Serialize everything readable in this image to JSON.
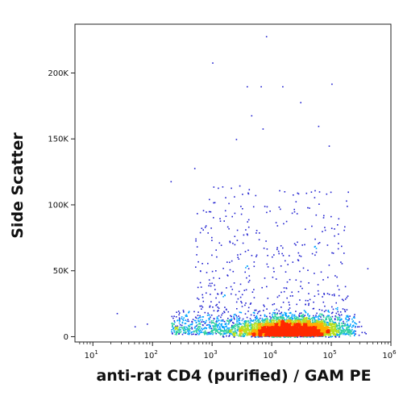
{
  "chart_data": {
    "type": "scatter",
    "plot_style": "flow cytometry pseudocolor density dot plot",
    "xlabel": "anti-rat CD4 (purified) / GAM PE",
    "ylabel": "Side Scatter",
    "x_scale": "log",
    "xlim": [
      5,
      1000000
    ],
    "x_ticks": [
      {
        "value": 10,
        "base": "10",
        "exp": "1"
      },
      {
        "value": 100,
        "base": "10",
        "exp": "2"
      },
      {
        "value": 1000,
        "base": "10",
        "exp": "3"
      },
      {
        "value": 10000,
        "base": "10",
        "exp": "4"
      },
      {
        "value": 100000,
        "base": "10",
        "exp": "5"
      },
      {
        "value": 1000000,
        "base": "10",
        "exp": "6"
      }
    ],
    "y_scale": "linear",
    "ylim": [
      -4000,
      237000
    ],
    "y_ticks": [
      {
        "value": 0,
        "label": "0"
      },
      {
        "value": 50000,
        "label": "50K"
      },
      {
        "value": 100000,
        "label": "100K"
      },
      {
        "value": 150000,
        "label": "150K"
      },
      {
        "value": 200000,
        "label": "200K"
      }
    ],
    "density_colors": [
      "#1f1fd0",
      "#00a2ff",
      "#2ed0a0",
      "#b8e020",
      "#ffae00",
      "#ff2a00"
    ],
    "population": {
      "description": "single CD4-negative/low population, dense core near x≈2.5e4, low side scatter",
      "main_cluster_center": {
        "x": 20000,
        "y": 5000
      },
      "main_cluster_spread": {
        "x_log_sd": 0.55,
        "y_sd": 6000
      },
      "tail_x_range": [
        50,
        300000
      ],
      "tail_y_max": 235000,
      "event_count_rendered": 6000
    },
    "sparse_points": [
      {
        "x": 3800,
        "y": 190000
      },
      {
        "x": 6500,
        "y": 190000
      },
      {
        "x": 15000,
        "y": 190000
      },
      {
        "x": 100000,
        "y": 192000
      },
      {
        "x": 8000,
        "y": 228000
      },
      {
        "x": 1000,
        "y": 208000
      },
      {
        "x": 4500,
        "y": 168000
      },
      {
        "x": 7000,
        "y": 158000
      },
      {
        "x": 2500,
        "y": 150000
      },
      {
        "x": 30000,
        "y": 178000
      },
      {
        "x": 60000,
        "y": 160000
      },
      {
        "x": 90000,
        "y": 145000
      },
      {
        "x": 200,
        "y": 118000
      },
      {
        "x": 500,
        "y": 128000
      },
      {
        "x": 400000,
        "y": 52000
      },
      {
        "x": 25,
        "y": 18000
      },
      {
        "x": 50,
        "y": 8000
      },
      {
        "x": 80,
        "y": 10000
      }
    ]
  }
}
